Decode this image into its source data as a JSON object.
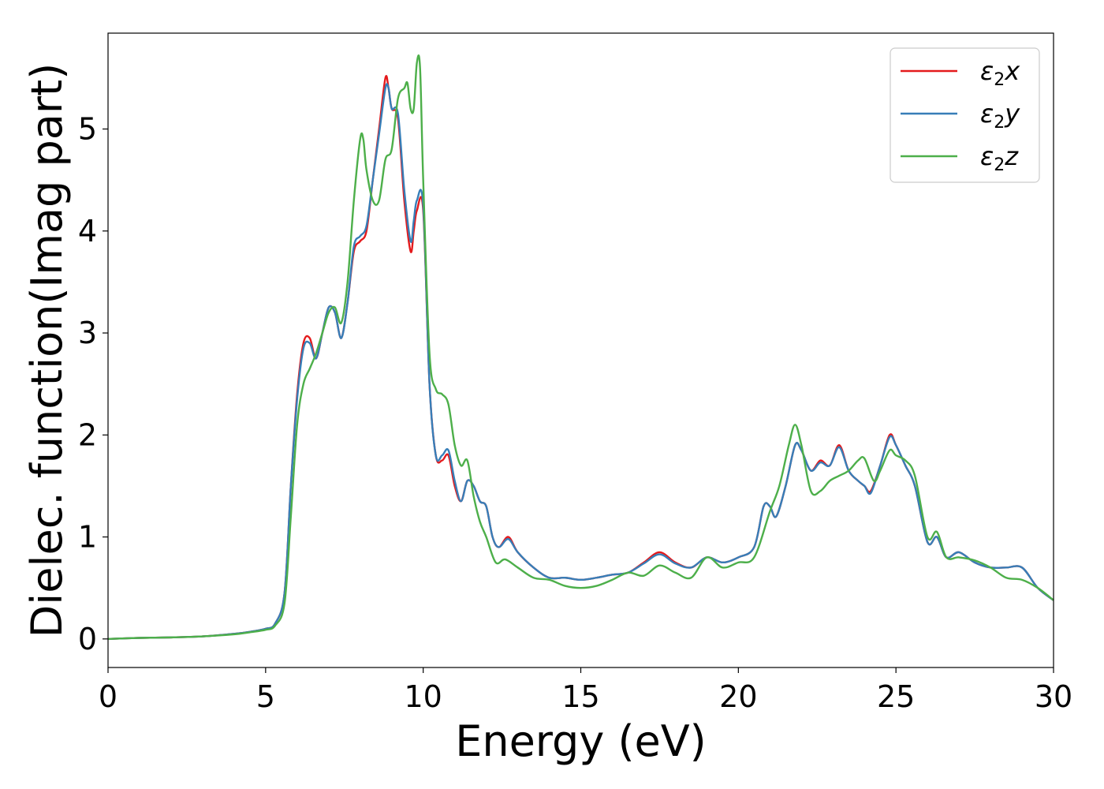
{
  "chart_data": {
    "type": "line",
    "xlabel": "Energy (eV)",
    "ylabel": "Dielec. function(Imag part)",
    "xlim": [
      0,
      30
    ],
    "ylim": [
      -0.28,
      5.94
    ],
    "xticks": [
      0,
      5,
      10,
      15,
      20,
      25,
      30
    ],
    "yticks": [
      0,
      1,
      2,
      3,
      4,
      5
    ],
    "grid": false,
    "legend_position": "top-right",
    "series": [
      {
        "name": "ε₂x",
        "legend_base": "ε",
        "legend_sub": "2",
        "legend_suffix": "x",
        "color": "#e41a1c",
        "x": [
          0,
          1,
          2,
          3,
          4,
          4.5,
          5,
          5.3,
          5.6,
          5.8,
          6.0,
          6.2,
          6.4,
          6.6,
          6.8,
          7.0,
          7.2,
          7.4,
          7.6,
          7.8,
          8.0,
          8.2,
          8.4,
          8.6,
          8.8,
          8.9,
          9.0,
          9.2,
          9.4,
          9.6,
          9.7,
          9.8,
          10.0,
          10.2,
          10.4,
          10.6,
          10.8,
          11.0,
          11.2,
          11.4,
          11.6,
          11.8,
          12.0,
          12.2,
          12.4,
          12.7,
          13.0,
          13.5,
          14.0,
          14.5,
          15.0,
          15.5,
          16.0,
          16.5,
          17.0,
          17.5,
          18.0,
          18.5,
          19.0,
          19.5,
          20.0,
          20.5,
          20.8,
          21.0,
          21.2,
          21.5,
          21.8,
          22.0,
          22.3,
          22.6,
          22.9,
          23.2,
          23.5,
          23.8,
          24.0,
          24.2,
          24.5,
          24.8,
          25.0,
          25.3,
          25.6,
          26.0,
          26.3,
          26.6,
          27.0,
          27.5,
          28.0,
          28.5,
          29.0,
          29.5,
          30.0
        ],
        "values": [
          0,
          0.01,
          0.015,
          0.025,
          0.05,
          0.07,
          0.1,
          0.15,
          0.45,
          1.5,
          2.4,
          2.9,
          2.95,
          2.75,
          3.0,
          3.25,
          3.2,
          2.95,
          3.3,
          3.8,
          3.9,
          4.0,
          4.5,
          5.0,
          5.5,
          5.4,
          5.2,
          5.1,
          4.3,
          3.8,
          4.0,
          4.2,
          4.2,
          2.5,
          1.8,
          1.75,
          1.8,
          1.5,
          1.35,
          1.55,
          1.5,
          1.35,
          1.3,
          1.0,
          0.9,
          1.0,
          0.85,
          0.7,
          0.6,
          0.6,
          0.58,
          0.6,
          0.63,
          0.65,
          0.75,
          0.85,
          0.75,
          0.7,
          0.8,
          0.75,
          0.8,
          0.9,
          1.3,
          1.3,
          1.2,
          1.5,
          1.9,
          1.85,
          1.65,
          1.75,
          1.7,
          1.9,
          1.65,
          1.55,
          1.5,
          1.45,
          1.7,
          2.0,
          1.9,
          1.7,
          1.5,
          0.95,
          1.0,
          0.8,
          0.85,
          0.75,
          0.7,
          0.7,
          0.7,
          0.5,
          0.38
        ]
      },
      {
        "name": "ε₂y",
        "legend_base": "ε",
        "legend_sub": "2",
        "legend_suffix": "y",
        "color": "#377eb8",
        "x": [
          0,
          1,
          2,
          3,
          4,
          4.5,
          5,
          5.3,
          5.6,
          5.8,
          6.0,
          6.2,
          6.4,
          6.6,
          6.8,
          7.0,
          7.2,
          7.4,
          7.6,
          7.8,
          8.0,
          8.2,
          8.4,
          8.6,
          8.8,
          8.9,
          9.0,
          9.2,
          9.4,
          9.6,
          9.7,
          9.8,
          10.0,
          10.2,
          10.4,
          10.6,
          10.8,
          11.0,
          11.2,
          11.4,
          11.6,
          11.8,
          12.0,
          12.2,
          12.4,
          12.7,
          13.0,
          13.5,
          14.0,
          14.5,
          15.0,
          15.5,
          16.0,
          16.5,
          17.0,
          17.5,
          18.0,
          18.5,
          19.0,
          19.5,
          20.0,
          20.5,
          20.8,
          21.0,
          21.2,
          21.5,
          21.8,
          22.0,
          22.3,
          22.6,
          22.9,
          23.2,
          23.5,
          23.8,
          24.0,
          24.2,
          24.5,
          24.8,
          25.0,
          25.3,
          25.6,
          26.0,
          26.3,
          26.6,
          27.0,
          27.5,
          28.0,
          28.5,
          29.0,
          29.5,
          30.0
        ],
        "values": [
          0,
          0.01,
          0.015,
          0.025,
          0.05,
          0.07,
          0.1,
          0.15,
          0.45,
          1.5,
          2.35,
          2.85,
          2.9,
          2.75,
          3.0,
          3.25,
          3.2,
          2.95,
          3.3,
          3.85,
          3.95,
          4.05,
          4.5,
          4.95,
          5.4,
          5.4,
          5.2,
          5.15,
          4.4,
          3.9,
          4.1,
          4.3,
          4.25,
          2.5,
          1.8,
          1.8,
          1.85,
          1.55,
          1.35,
          1.55,
          1.5,
          1.35,
          1.3,
          1.0,
          0.9,
          0.98,
          0.85,
          0.7,
          0.6,
          0.6,
          0.58,
          0.6,
          0.63,
          0.65,
          0.74,
          0.83,
          0.74,
          0.7,
          0.8,
          0.75,
          0.8,
          0.9,
          1.3,
          1.3,
          1.2,
          1.5,
          1.9,
          1.85,
          1.65,
          1.73,
          1.7,
          1.88,
          1.65,
          1.55,
          1.5,
          1.43,
          1.7,
          1.98,
          1.9,
          1.7,
          1.5,
          0.95,
          1.0,
          0.8,
          0.85,
          0.75,
          0.7,
          0.7,
          0.7,
          0.5,
          0.38
        ]
      },
      {
        "name": "ε₂z",
        "legend_base": "ε",
        "legend_sub": "2",
        "legend_suffix": "z",
        "color": "#4daf4a",
        "x": [
          0,
          1,
          2,
          3,
          4,
          4.5,
          5,
          5.3,
          5.6,
          5.8,
          6.0,
          6.2,
          6.4,
          6.6,
          6.8,
          7.0,
          7.2,
          7.4,
          7.6,
          7.8,
          8.0,
          8.1,
          8.2,
          8.4,
          8.6,
          8.8,
          9.0,
          9.2,
          9.4,
          9.5,
          9.6,
          9.7,
          9.8,
          9.9,
          10.0,
          10.2,
          10.4,
          10.6,
          10.8,
          11.0,
          11.2,
          11.4,
          11.6,
          11.8,
          12.0,
          12.3,
          12.6,
          13.0,
          13.5,
          14.0,
          14.5,
          15.0,
          15.5,
          16.0,
          16.5,
          17.0,
          17.5,
          18.0,
          18.5,
          19.0,
          19.5,
          20.0,
          20.5,
          21.0,
          21.3,
          21.6,
          21.8,
          22.0,
          22.3,
          22.6,
          22.9,
          23.2,
          23.5,
          23.8,
          24.0,
          24.3,
          24.5,
          24.8,
          25.0,
          25.3,
          25.6,
          26.0,
          26.3,
          26.6,
          27.0,
          27.5,
          28.0,
          28.5,
          29.0,
          29.5,
          30.0
        ],
        "values": [
          0,
          0.01,
          0.015,
          0.025,
          0.045,
          0.065,
          0.09,
          0.13,
          0.35,
          1.2,
          2.1,
          2.5,
          2.65,
          2.8,
          3.0,
          3.2,
          3.25,
          3.1,
          3.5,
          4.3,
          4.9,
          4.9,
          4.6,
          4.3,
          4.3,
          4.7,
          4.8,
          5.3,
          5.4,
          5.45,
          5.2,
          5.2,
          5.65,
          5.6,
          4.5,
          2.8,
          2.45,
          2.4,
          2.3,
          1.9,
          1.7,
          1.75,
          1.4,
          1.15,
          1.0,
          0.75,
          0.78,
          0.7,
          0.6,
          0.58,
          0.52,
          0.5,
          0.52,
          0.58,
          0.65,
          0.62,
          0.72,
          0.65,
          0.6,
          0.8,
          0.7,
          0.75,
          0.8,
          1.25,
          1.5,
          1.9,
          2.1,
          1.9,
          1.45,
          1.45,
          1.55,
          1.6,
          1.65,
          1.75,
          1.77,
          1.55,
          1.65,
          1.85,
          1.8,
          1.75,
          1.6,
          1.0,
          1.05,
          0.8,
          0.8,
          0.77,
          0.7,
          0.6,
          0.58,
          0.5,
          0.38
        ]
      }
    ]
  }
}
